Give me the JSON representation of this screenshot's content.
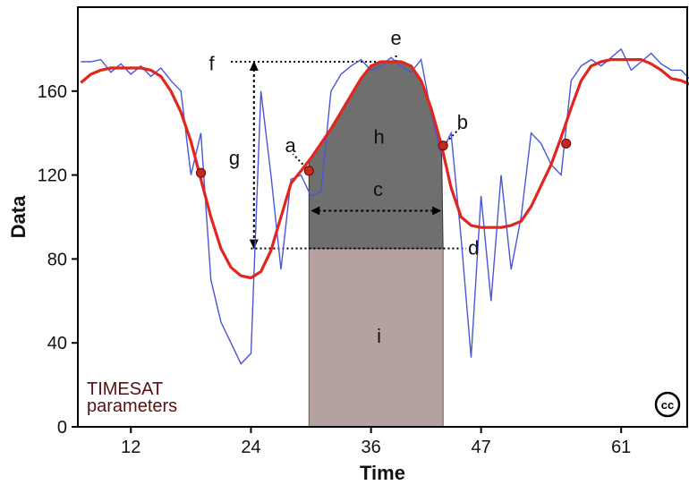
{
  "chart_data": {
    "type": "line",
    "xlabel": "Time",
    "ylabel": "Data",
    "xlim": [
      6.7,
      67.6
    ],
    "ylim": [
      0,
      200
    ],
    "x_ticks": [
      12,
      24,
      36,
      47,
      61
    ],
    "y_ticks": [
      0,
      40,
      80,
      120,
      160
    ],
    "grid": false,
    "series": [
      {
        "color": "#4a55d8",
        "x": [
          7,
          8,
          9,
          10,
          11,
          12,
          13,
          14,
          15,
          16,
          17,
          18,
          19,
          20,
          21,
          22,
          23,
          24,
          25,
          26,
          27,
          28,
          29,
          30,
          31,
          32,
          33,
          34,
          35,
          36,
          37,
          38,
          39,
          40,
          41,
          42,
          43,
          44,
          45,
          46,
          47,
          48,
          49,
          50,
          51,
          52,
          53,
          54,
          55,
          56,
          57,
          58,
          59,
          60,
          61,
          62,
          63,
          64,
          65,
          66,
          67,
          68
        ],
        "values": [
          174,
          174,
          175,
          169,
          173,
          168,
          172,
          167,
          171,
          165,
          160,
          120,
          140,
          70,
          50,
          40,
          30,
          35,
          160,
          120,
          75,
          118,
          120,
          110,
          112,
          160,
          168,
          172,
          175,
          170,
          172,
          176,
          172,
          169,
          175,
          150,
          130,
          140,
          90,
          33,
          110,
          60,
          120,
          75,
          100,
          140,
          135,
          125,
          120,
          165,
          172,
          175,
          172,
          176,
          180,
          170,
          174,
          178,
          173,
          170,
          170,
          165
        ]
      },
      {
        "color": "#e0261e",
        "x": [
          7,
          8,
          9,
          10,
          11,
          12,
          13,
          14,
          15,
          16,
          17,
          18,
          19,
          20,
          21,
          22,
          23,
          24,
          25,
          26,
          27,
          28,
          29,
          30,
          31,
          32,
          33,
          34,
          35,
          36,
          37,
          38,
          39,
          40,
          41,
          42,
          43,
          44,
          45,
          46,
          47,
          48,
          49,
          50,
          51,
          52,
          53,
          54,
          55,
          56,
          57,
          58,
          59,
          60,
          61,
          62,
          63,
          64,
          65,
          66,
          67,
          68
        ],
        "values": [
          164,
          168,
          170,
          171,
          171,
          171,
          171,
          170,
          167,
          160,
          150,
          136,
          118,
          100,
          85,
          76,
          72,
          71,
          74,
          84,
          100,
          116,
          122,
          128,
          135,
          142,
          150,
          158,
          166,
          172,
          174,
          174,
          174,
          172,
          165,
          152,
          135,
          114,
          100,
          96,
          95,
          95,
          95,
          96,
          98,
          105,
          115,
          125,
          138,
          152,
          165,
          172,
          174,
          175,
          175,
          175,
          175,
          173,
          170,
          166,
          165,
          163
        ]
      }
    ],
    "points": [
      {
        "x": 19,
        "y": 121
      },
      {
        "x": 29.8,
        "y": 122
      },
      {
        "x": 43.2,
        "y": 134
      },
      {
        "x": 55.5,
        "y": 135
      }
    ],
    "base_level": 85,
    "season_start": 29.8,
    "season_end": 43.2,
    "peak_value": 174,
    "peak_time": 38.5,
    "region_colors": {
      "h": "#6f6f6f",
      "i": "#b5a2a0"
    },
    "annotations": {
      "a": "a",
      "b": "b",
      "c": "c",
      "d": "d",
      "e": "e",
      "f": "f",
      "g": "g",
      "h": "h",
      "i": "i"
    },
    "note_lines": [
      "TIMESAT",
      "parameters"
    ],
    "cc_badge": "cc"
  }
}
